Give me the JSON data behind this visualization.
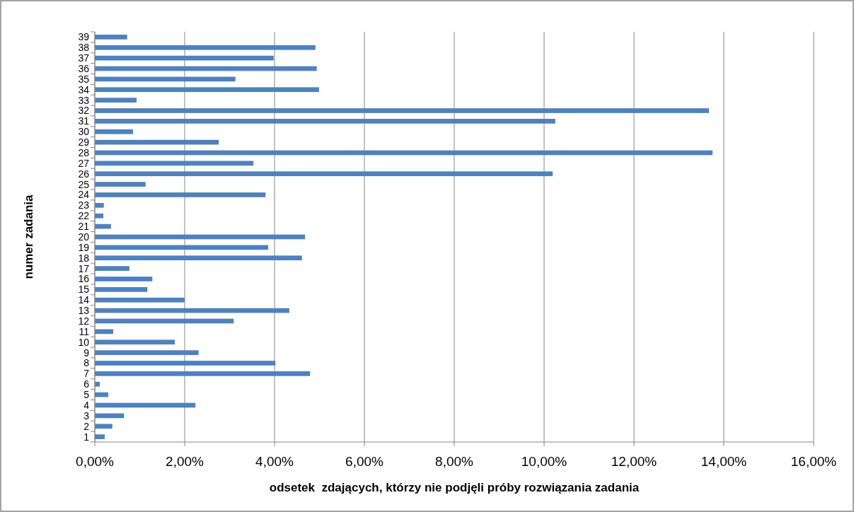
{
  "chart_data": {
    "type": "bar",
    "orientation": "horizontal",
    "xlabel": "odsetek  zdających, którzy nie podjęli próby rozwiązania zadania",
    "ylabel": "numer zadania",
    "categories": [
      "39",
      "38",
      "37",
      "36",
      "35",
      "34",
      "33",
      "32",
      "31",
      "30",
      "29",
      "28",
      "27",
      "26",
      "25",
      "24",
      "23",
      "22",
      "21",
      "20",
      "19",
      "18",
      "17",
      "16",
      "15",
      "14",
      "13",
      "12",
      "11",
      "10",
      "9",
      "8",
      "7",
      "6",
      "5",
      "4",
      "3",
      "2",
      "1"
    ],
    "values": [
      0.72,
      4.91,
      3.98,
      4.94,
      3.13,
      4.99,
      0.93,
      13.67,
      10.25,
      0.85,
      2.76,
      13.75,
      3.53,
      10.19,
      1.13,
      3.8,
      0.2,
      0.19,
      0.36,
      4.68,
      3.86,
      4.61,
      0.77,
      1.28,
      1.17,
      2.0,
      4.33,
      3.09,
      0.41,
      1.78,
      2.31,
      4.02,
      4.79,
      0.11,
      0.3,
      2.24,
      0.65,
      0.39,
      0.22
    ],
    "color": "#4f81bd",
    "xlim": [
      0,
      16
    ],
    "xticks": [
      {
        "value": 0,
        "label": "0,00%"
      },
      {
        "value": 2,
        "label": "2,00%"
      },
      {
        "value": 4,
        "label": "4,00%"
      },
      {
        "value": 6,
        "label": "6,00%"
      },
      {
        "value": 8,
        "label": "8,00%"
      },
      {
        "value": 10,
        "label": "10,00%"
      },
      {
        "value": 12,
        "label": "12,00%"
      },
      {
        "value": 14,
        "label": "14,00%"
      },
      {
        "value": 16,
        "label": "16,00%"
      }
    ],
    "grid": "x"
  }
}
